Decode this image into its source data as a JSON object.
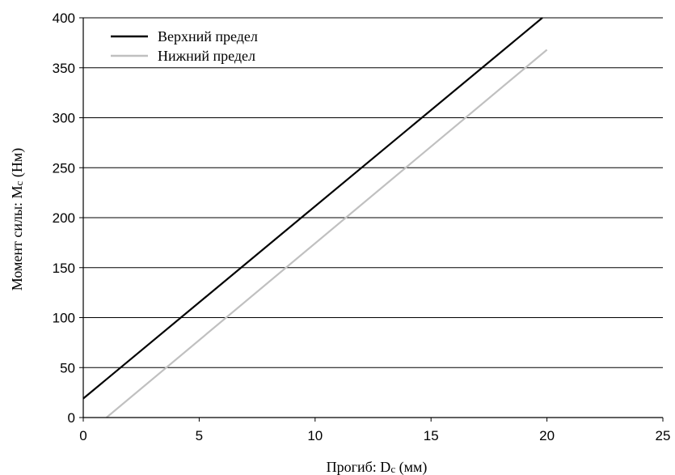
{
  "chart_data": {
    "type": "line",
    "title": "",
    "xlabel": "Прогиб: D",
    "xlabel_sub": "c",
    "xlabel_unit": " (мм)",
    "ylabel": "Момент силы: M",
    "ylabel_sub": "c",
    "ylabel_unit": " (Нм)",
    "xlim": [
      0,
      25
    ],
    "ylim": [
      0,
      400
    ],
    "xticks": [
      0,
      5,
      10,
      15,
      20,
      25
    ],
    "yticks": [
      0,
      50,
      100,
      150,
      200,
      250,
      300,
      350,
      400
    ],
    "x_tick_labels": [
      "0",
      "5",
      "10",
      "15",
      "20",
      "25"
    ],
    "y_tick_labels": [
      "0",
      "50",
      "100",
      "150",
      "200",
      "250",
      "300",
      "350",
      "400"
    ],
    "grid": "horizontal",
    "legend_position": "top-left",
    "series": [
      {
        "name": "Верхний предел",
        "color": "#000000",
        "points": [
          [
            0,
            19
          ],
          [
            19.8,
            400
          ]
        ]
      },
      {
        "name": "Нижний предел",
        "color": "#c0c0c0",
        "points": [
          [
            1.0,
            0
          ],
          [
            20,
            368
          ]
        ]
      }
    ]
  }
}
